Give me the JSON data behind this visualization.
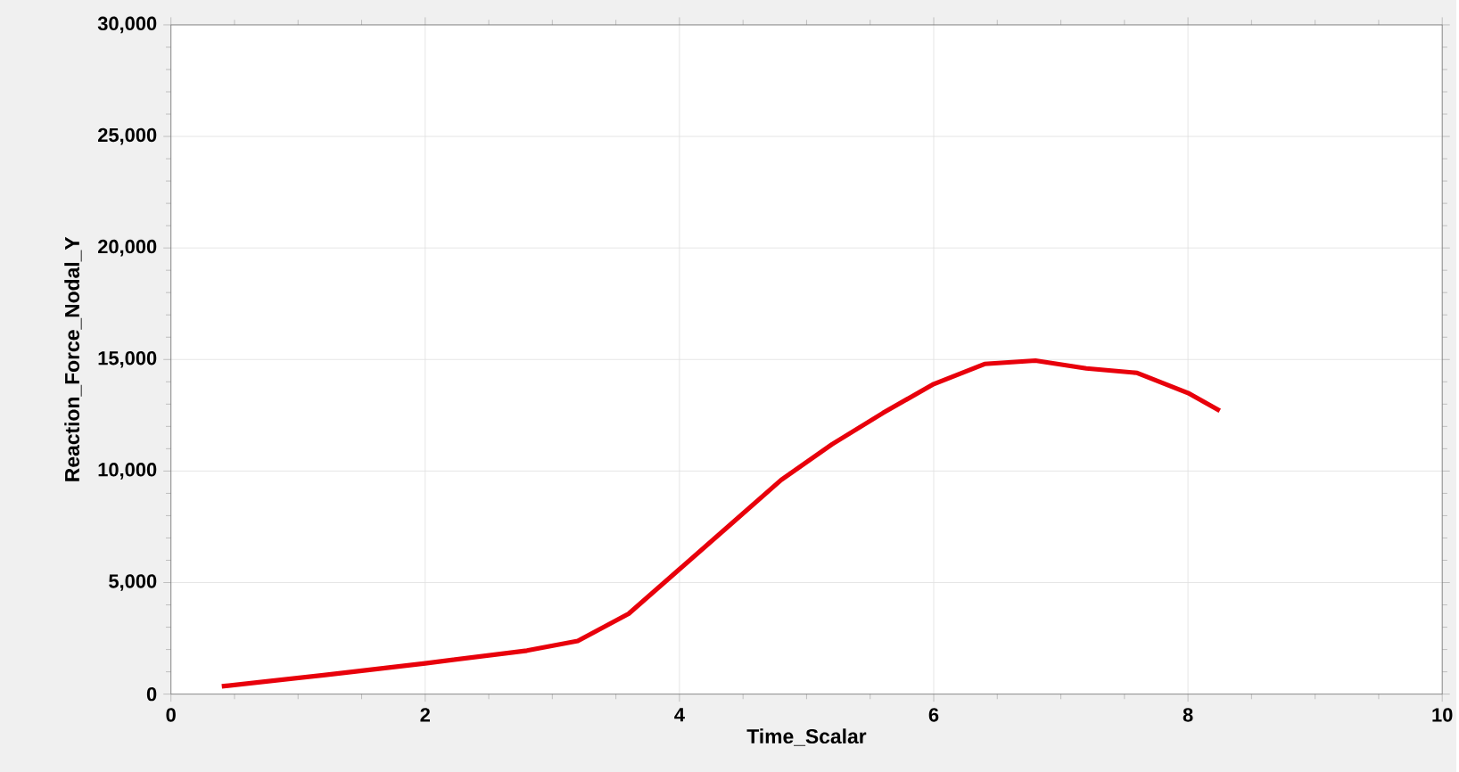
{
  "chart_data": {
    "type": "line",
    "xlabel": "Time_Scalar",
    "ylabel": "Reaction_Force_Nodal_Y",
    "x": [
      0.4,
      1.2,
      2.0,
      2.8,
      3.2,
      3.6,
      4.0,
      4.4,
      4.8,
      5.2,
      5.6,
      6.0,
      6.4,
      6.8,
      7.2,
      7.6,
      8.0,
      8.25
    ],
    "series": [
      {
        "color": "#e8000b",
        "values": [
          350,
          850,
          1380,
          1950,
          2380,
          3600,
          5600,
          7600,
          9600,
          11200,
          12600,
          13900,
          14800,
          14950,
          14600,
          14400,
          13500,
          12700
        ]
      }
    ],
    "xlim": [
      0,
      10
    ],
    "xticks": [
      0,
      2,
      4,
      6,
      8,
      10
    ],
    "ylim": [
      0,
      30000
    ],
    "yticks": [
      {
        "value": 0,
        "label": "0"
      },
      {
        "value": 5000,
        "label": "5,000"
      },
      {
        "value": 10000,
        "label": "10,000"
      },
      {
        "value": 15000,
        "label": "15,000"
      },
      {
        "value": 20000,
        "label": "20,000"
      },
      {
        "value": 25000,
        "label": "25,000"
      },
      {
        "value": 30000,
        "label": "30,000"
      }
    ],
    "grid": true,
    "marker": "none",
    "line_style": "solid"
  }
}
